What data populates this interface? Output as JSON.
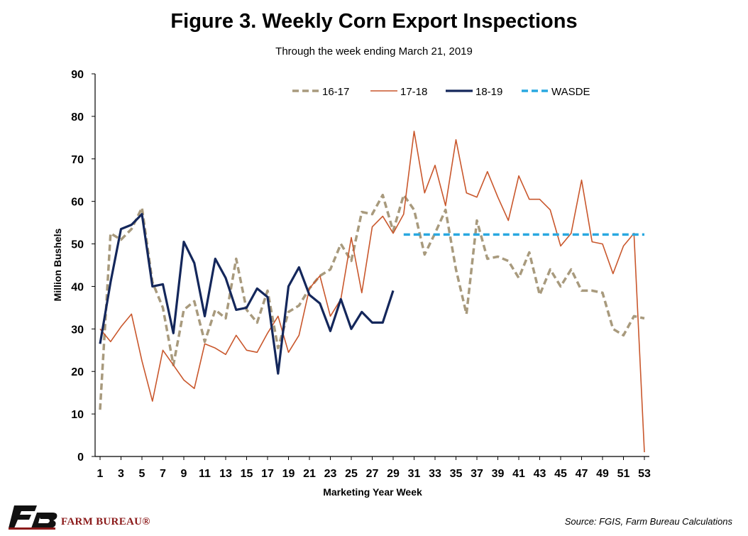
{
  "chart_data": {
    "type": "line",
    "title": "Figure 3. Weekly Corn Export Inspections",
    "subtitle": "Through the week ending March 21, 2019",
    "xlabel": "Marketing Year Week",
    "ylabel": "Million Bushels",
    "ylim": [
      0,
      90
    ],
    "yticks": [
      0,
      10,
      20,
      30,
      40,
      50,
      60,
      70,
      80,
      90
    ],
    "xlim": [
      1,
      53
    ],
    "xticks": [
      1,
      3,
      5,
      7,
      9,
      11,
      13,
      15,
      17,
      19,
      21,
      23,
      25,
      27,
      29,
      31,
      33,
      35,
      37,
      39,
      41,
      43,
      45,
      47,
      49,
      51,
      53
    ],
    "grid": false,
    "legend": "top",
    "series": [
      {
        "name": "16-17",
        "color": "#a89a7d",
        "style": "dashed",
        "x": [
          1,
          2,
          3,
          4,
          5,
          6,
          7,
          8,
          9,
          10,
          11,
          12,
          13,
          14,
          15,
          16,
          17,
          18,
          19,
          20,
          21,
          22,
          23,
          24,
          25,
          26,
          27,
          28,
          29,
          30,
          31,
          32,
          33,
          34,
          35,
          36,
          37,
          38,
          39,
          40,
          41,
          42,
          43,
          44,
          45,
          46,
          47,
          48,
          49,
          50,
          51,
          52,
          53
        ],
        "values": [
          11,
          52.5,
          51,
          53.5,
          58.5,
          41,
          35,
          21.5,
          34.5,
          36.5,
          27,
          34.5,
          32.5,
          46.5,
          34.5,
          31.5,
          39,
          25.5,
          34,
          35.5,
          39.5,
          42.5,
          44,
          50,
          46,
          57.5,
          57,
          61.5,
          53,
          61.5,
          58,
          47.5,
          52.5,
          58,
          44,
          33.5,
          55.5,
          46.5,
          47,
          46,
          42,
          48,
          38,
          44,
          40,
          44,
          39,
          39,
          38.5,
          30,
          28.5,
          33,
          32.5
        ]
      },
      {
        "name": "17-18",
        "color": "#c9572c",
        "style": "solid",
        "x": [
          1,
          2,
          3,
          4,
          5,
          6,
          7,
          8,
          9,
          10,
          11,
          12,
          13,
          14,
          15,
          16,
          17,
          18,
          19,
          20,
          21,
          22,
          23,
          24,
          25,
          26,
          27,
          28,
          29,
          30,
          31,
          32,
          33,
          34,
          35,
          36,
          37,
          38,
          39,
          40,
          41,
          42,
          43,
          44,
          45,
          46,
          47,
          48,
          49,
          50,
          51,
          52,
          53
        ],
        "values": [
          30,
          27,
          30.5,
          33.5,
          22.5,
          13,
          25,
          21.5,
          18,
          16,
          26.5,
          25.5,
          24,
          28.5,
          25,
          24.5,
          29,
          33,
          24.5,
          28.5,
          39.5,
          42.5,
          33,
          37,
          51.5,
          38.5,
          54,
          56.5,
          52.5,
          57,
          76.5,
          62,
          68.5,
          59,
          74.5,
          62,
          61,
          67,
          61,
          55.5,
          66,
          60.5,
          60.5,
          58,
          49.5,
          52.5,
          65,
          50.5,
          50,
          43,
          49.5,
          52.5,
          1
        ]
      },
      {
        "name": "18-19",
        "color": "#14275b",
        "style": "solid-bold",
        "x": [
          1,
          2,
          3,
          4,
          5,
          6,
          7,
          8,
          9,
          10,
          11,
          12,
          13,
          14,
          15,
          16,
          17,
          18,
          19,
          20,
          21,
          22,
          23,
          24,
          25,
          26,
          27,
          28,
          29
        ],
        "values": [
          26.5,
          41,
          53.5,
          54.5,
          57,
          40,
          40.5,
          29,
          50.5,
          45.5,
          33,
          46.5,
          42,
          34.5,
          35,
          39.5,
          37.5,
          19.5,
          40,
          44.5,
          38,
          36,
          29.5,
          37,
          30,
          34,
          31.5,
          31.5,
          39
        ]
      },
      {
        "name": "WASDE",
        "color": "#29a8e0",
        "style": "dashed-bold",
        "x": [
          30,
          53
        ],
        "values": [
          52.2,
          52.2
        ]
      }
    ]
  },
  "footer": {
    "logo_text": "FARM BUREAU®",
    "source": "Source: FGIS, Farm Bureau Calculations"
  }
}
